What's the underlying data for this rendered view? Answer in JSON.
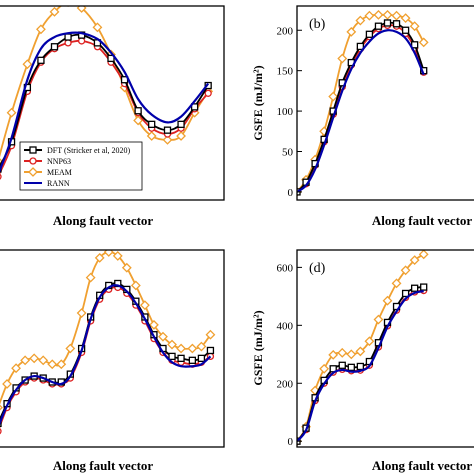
{
  "colors": {
    "DFT": "#000000",
    "NNP63": "#dd2222",
    "MEAM": "#f0a030",
    "RANN": "#0000aa"
  },
  "legend": [
    "DFT (Stricker et al, 2020)",
    "NNP63",
    "MEAM",
    "RANN"
  ],
  "chart_data": [
    {
      "type": "line",
      "panel": "a",
      "panel_label": "",
      "xlabel": "Along fault vector",
      "ylabel": "",
      "xlim": [
        0,
        1
      ],
      "ylim": [
        0,
        1
      ],
      "yticks": [],
      "legend_position": "bottom",
      "series": [
        {
          "name": "DFT (Stricker et al, 2020)",
          "x": [
            0,
            0.06,
            0.13,
            0.19,
            0.25,
            0.31,
            0.37,
            0.44,
            0.5,
            0.56,
            0.62,
            0.68,
            0.75,
            0.81,
            0.87,
            0.93
          ],
          "values": [
            0.16,
            0.3,
            0.58,
            0.72,
            0.79,
            0.84,
            0.85,
            0.81,
            0.73,
            0.62,
            0.46,
            0.39,
            0.36,
            0.39,
            0.48,
            0.59
          ]
        },
        {
          "name": "NNP63",
          "x": [
            0,
            0.06,
            0.13,
            0.19,
            0.25,
            0.31,
            0.37,
            0.44,
            0.5,
            0.56,
            0.62,
            0.68,
            0.75,
            0.81,
            0.87,
            0.93
          ],
          "values": [
            0.12,
            0.28,
            0.56,
            0.71,
            0.78,
            0.81,
            0.82,
            0.79,
            0.71,
            0.6,
            0.45,
            0.37,
            0.34,
            0.37,
            0.47,
            0.55
          ]
        },
        {
          "name": "MEAM",
          "x": [
            0,
            0.06,
            0.13,
            0.19,
            0.25,
            0.31,
            0.37,
            0.44,
            0.5,
            0.56,
            0.62,
            0.68,
            0.75,
            0.81,
            0.87,
            0.93
          ],
          "values": [
            0.2,
            0.45,
            0.7,
            0.88,
            0.97,
            1.02,
            0.99,
            0.89,
            0.75,
            0.58,
            0.41,
            0.33,
            0.31,
            0.33,
            0.45,
            0.56
          ]
        },
        {
          "name": "RANN",
          "x": [
            0,
            0.06,
            0.13,
            0.19,
            0.25,
            0.31,
            0.37,
            0.44,
            0.5,
            0.56,
            0.62,
            0.68,
            0.75,
            0.81,
            0.87,
            0.93
          ],
          "values": [
            0.13,
            0.32,
            0.62,
            0.78,
            0.84,
            0.86,
            0.86,
            0.83,
            0.76,
            0.66,
            0.52,
            0.44,
            0.4,
            0.43,
            0.51,
            0.6
          ]
        }
      ]
    },
    {
      "type": "line",
      "panel": "b",
      "panel_label": "(b)",
      "xlabel": "Along fault vector",
      "ylabel": "GSFE (mJ/m²)",
      "xlim": [
        0,
        1
      ],
      "ylim": [
        -10,
        230
      ],
      "yticks": [
        "0",
        "50",
        "100",
        "150",
        "200"
      ],
      "legend_position": "none",
      "series": [
        {
          "name": "DFT (Stricker et al, 2020)",
          "x": [
            0,
            0.05,
            0.1,
            0.15,
            0.2,
            0.25,
            0.3,
            0.35,
            0.4,
            0.45,
            0.5,
            0.55,
            0.6,
            0.65,
            0.7
          ],
          "values": [
            0,
            12,
            35,
            65,
            100,
            135,
            160,
            180,
            195,
            205,
            209,
            208,
            200,
            182,
            150
          ]
        },
        {
          "name": "NNP63",
          "x": [
            0,
            0.05,
            0.1,
            0.15,
            0.2,
            0.25,
            0.3,
            0.35,
            0.4,
            0.45,
            0.5,
            0.55,
            0.6,
            0.65,
            0.7
          ],
          "values": [
            0,
            10,
            33,
            62,
            96,
            130,
            157,
            177,
            192,
            202,
            206,
            205,
            196,
            178,
            148
          ]
        },
        {
          "name": "MEAM",
          "x": [
            0,
            0.05,
            0.1,
            0.15,
            0.2,
            0.25,
            0.3,
            0.35,
            0.4,
            0.45,
            0.5,
            0.55,
            0.6,
            0.65,
            0.7
          ],
          "values": [
            0,
            15,
            40,
            75,
            118,
            165,
            198,
            212,
            218,
            219,
            219,
            218,
            215,
            205,
            185
          ]
        },
        {
          "name": "RANN",
          "x": [
            0,
            0.05,
            0.1,
            0.15,
            0.2,
            0.25,
            0.3,
            0.35,
            0.4,
            0.45,
            0.5,
            0.55,
            0.6,
            0.65,
            0.7
          ],
          "values": [
            0,
            8,
            28,
            58,
            92,
            125,
            152,
            172,
            186,
            196,
            200,
            198,
            190,
            172,
            145
          ]
        }
      ]
    },
    {
      "type": "line",
      "panel": "c",
      "panel_label": "",
      "xlabel": "Along fault vector",
      "ylabel": "",
      "xlim": [
        0,
        1
      ],
      "ylim": [
        0,
        1
      ],
      "yticks": [],
      "legend_position": "none",
      "series": [
        {
          "name": "DFT (Stricker et al, 2020)",
          "x": [
            0,
            0.04,
            0.08,
            0.12,
            0.16,
            0.2,
            0.24,
            0.28,
            0.32,
            0.37,
            0.41,
            0.45,
            0.49,
            0.53,
            0.57,
            0.61,
            0.65,
            0.69,
            0.73,
            0.77,
            0.81,
            0.86,
            0.9,
            0.94
          ],
          "values": [
            0.12,
            0.22,
            0.3,
            0.34,
            0.36,
            0.35,
            0.33,
            0.33,
            0.37,
            0.5,
            0.66,
            0.77,
            0.82,
            0.83,
            0.8,
            0.74,
            0.66,
            0.57,
            0.5,
            0.46,
            0.45,
            0.44,
            0.45,
            0.49
          ]
        },
        {
          "name": "NNP63",
          "x": [
            0,
            0.04,
            0.08,
            0.12,
            0.16,
            0.2,
            0.24,
            0.28,
            0.32,
            0.37,
            0.41,
            0.45,
            0.49,
            0.53,
            0.57,
            0.61,
            0.65,
            0.69,
            0.73,
            0.77,
            0.81,
            0.86,
            0.9,
            0.94
          ],
          "values": [
            0.08,
            0.2,
            0.28,
            0.33,
            0.35,
            0.34,
            0.32,
            0.32,
            0.35,
            0.48,
            0.64,
            0.75,
            0.8,
            0.81,
            0.78,
            0.72,
            0.64,
            0.55,
            0.48,
            0.44,
            0.43,
            0.42,
            0.43,
            0.46
          ]
        },
        {
          "name": "MEAM",
          "x": [
            0,
            0.04,
            0.08,
            0.12,
            0.16,
            0.2,
            0.24,
            0.28,
            0.32,
            0.37,
            0.41,
            0.45,
            0.49,
            0.53,
            0.57,
            0.61,
            0.65,
            0.69,
            0.73,
            0.77,
            0.81,
            0.86,
            0.9,
            0.94
          ],
          "values": [
            0.2,
            0.32,
            0.4,
            0.44,
            0.45,
            0.44,
            0.42,
            0.42,
            0.5,
            0.68,
            0.86,
            0.96,
            0.99,
            0.97,
            0.91,
            0.82,
            0.72,
            0.62,
            0.56,
            0.52,
            0.5,
            0.5,
            0.51,
            0.57
          ]
        },
        {
          "name": "RANN",
          "x": [
            0,
            0.04,
            0.08,
            0.12,
            0.16,
            0.2,
            0.24,
            0.28,
            0.32,
            0.37,
            0.41,
            0.45,
            0.49,
            0.53,
            0.57,
            0.61,
            0.65,
            0.69,
            0.73,
            0.77,
            0.81,
            0.86,
            0.9,
            0.94
          ],
          "values": [
            0.1,
            0.21,
            0.29,
            0.34,
            0.36,
            0.35,
            0.33,
            0.32,
            0.36,
            0.49,
            0.65,
            0.76,
            0.81,
            0.82,
            0.79,
            0.73,
            0.65,
            0.56,
            0.48,
            0.43,
            0.41,
            0.41,
            0.42,
            0.46
          ]
        }
      ]
    },
    {
      "type": "line",
      "panel": "d",
      "panel_label": "(d)",
      "xlabel": "Along fault vector",
      "ylabel": "GSFE (mJ/m²)",
      "xlim": [
        0,
        1
      ],
      "ylim": [
        -20,
        660
      ],
      "yticks": [
        "0",
        "200",
        "400",
        "600"
      ],
      "legend_position": "none",
      "series": [
        {
          "name": "DFT (Stricker et al, 2020)",
          "x": [
            0,
            0.05,
            0.1,
            0.15,
            0.2,
            0.25,
            0.3,
            0.35,
            0.4,
            0.45,
            0.5,
            0.55,
            0.6,
            0.65,
            0.7
          ],
          "values": [
            0,
            45,
            150,
            210,
            250,
            262,
            255,
            258,
            275,
            340,
            410,
            465,
            510,
            528,
            532
          ]
        },
        {
          "name": "NNP63",
          "x": [
            0,
            0.05,
            0.1,
            0.15,
            0.2,
            0.25,
            0.3,
            0.35,
            0.4,
            0.45,
            0.5,
            0.55,
            0.6,
            0.65,
            0.7
          ],
          "values": [
            0,
            40,
            140,
            200,
            238,
            248,
            243,
            245,
            262,
            325,
            398,
            452,
            496,
            515,
            520
          ]
        },
        {
          "name": "MEAM",
          "x": [
            0,
            0.05,
            0.1,
            0.15,
            0.2,
            0.25,
            0.3,
            0.35,
            0.4,
            0.45,
            0.5,
            0.55,
            0.6,
            0.65,
            0.7
          ],
          "values": [
            0,
            50,
            175,
            250,
            298,
            305,
            300,
            310,
            345,
            420,
            485,
            545,
            590,
            625,
            645
          ]
        },
        {
          "name": "RANN",
          "x": [
            0,
            0.05,
            0.1,
            0.15,
            0.2,
            0.25,
            0.3,
            0.35,
            0.4,
            0.45,
            0.5,
            0.55,
            0.6,
            0.65,
            0.7
          ],
          "values": [
            0,
            38,
            138,
            198,
            236,
            246,
            240,
            243,
            260,
            322,
            395,
            448,
            492,
            512,
            518
          ]
        }
      ]
    }
  ]
}
